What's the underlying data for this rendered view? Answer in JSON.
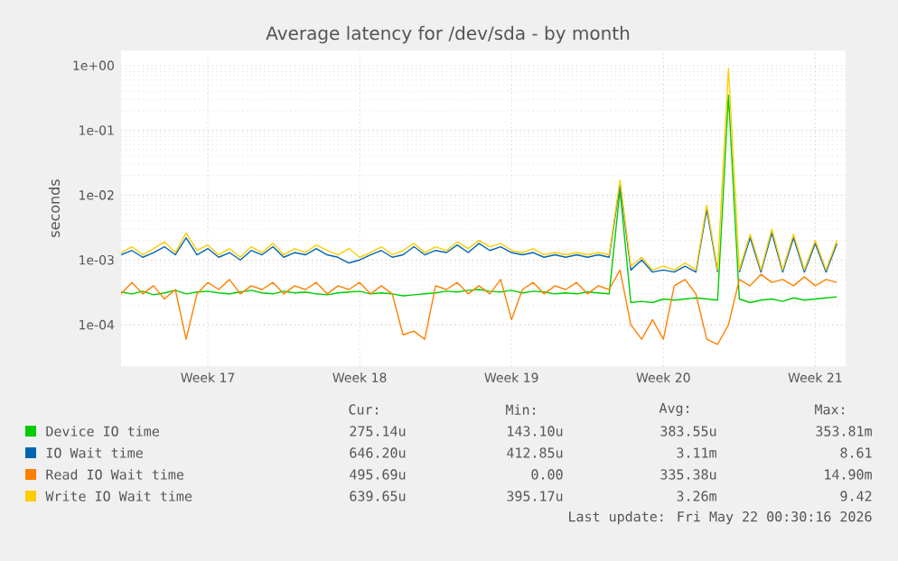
{
  "chart_data": {
    "type": "line",
    "title": "Average latency for /dev/sda - by month",
    "ylabel": "seconds",
    "log": true,
    "grid": true,
    "legend": "bottom",
    "categories": [
      null,
      null,
      null,
      null,
      null,
      null,
      null,
      null,
      "Week 17",
      null,
      null,
      null,
      null,
      null,
      null,
      null,
      null,
      null,
      null,
      null,
      null,
      null,
      "Week 18",
      null,
      null,
      null,
      null,
      null,
      null,
      null,
      null,
      null,
      null,
      null,
      null,
      null,
      "Week 19",
      null,
      null,
      null,
      null,
      null,
      null,
      null,
      null,
      null,
      null,
      null,
      null,
      null,
      "Week 20",
      null,
      null,
      null,
      null,
      null,
      null,
      null,
      null,
      null,
      null,
      null,
      null,
      null,
      "Week 21",
      null,
      null
    ],
    "ylim": [
      2.3e-05,
      1.7
    ],
    "yticks": [
      {
        "value": 0.0001,
        "label": "1e-04"
      },
      {
        "value": 0.001,
        "label": "1e-03"
      },
      {
        "value": 0.01,
        "label": "1e-02"
      },
      {
        "value": 0.1,
        "label": "1e-01"
      },
      {
        "value": 1,
        "label": "1e+00"
      }
    ],
    "series": [
      {
        "name": "Device IO time",
        "color": "#00cc00",
        "values": [
          0.00032,
          0.0003,
          0.00033,
          0.00029,
          0.00031,
          0.00034,
          0.0003,
          0.00032,
          0.00033,
          0.00031,
          0.0003,
          0.00032,
          0.00034,
          0.00031,
          0.0003,
          0.00033,
          0.00031,
          0.00032,
          0.0003,
          0.00029,
          0.00031,
          0.00032,
          0.00033,
          0.0003,
          0.00031,
          0.0003,
          0.00028,
          0.00029,
          0.0003,
          0.00031,
          0.00033,
          0.00032,
          0.00034,
          0.00035,
          0.00033,
          0.00032,
          0.00034,
          0.00031,
          0.00033,
          0.00032,
          0.0003,
          0.00031,
          0.0003,
          0.00032,
          0.00031,
          0.0003,
          0.012,
          0.00022,
          0.00023,
          0.00022,
          0.00025,
          0.00024,
          0.00025,
          0.00026,
          0.00025,
          0.00024,
          0.35,
          0.00025,
          0.00022,
          0.00024,
          0.00025,
          0.00023,
          0.00026,
          0.00024,
          0.00025,
          0.00026,
          0.00027
        ]
      },
      {
        "name": "IO Wait time",
        "color": "#0066b3",
        "values": [
          0.0012,
          0.0014,
          0.0011,
          0.0013,
          0.0016,
          0.0012,
          0.0022,
          0.0012,
          0.0015,
          0.0011,
          0.0013,
          0.001,
          0.0014,
          0.0012,
          0.0016,
          0.0011,
          0.0013,
          0.0012,
          0.0015,
          0.0012,
          0.0011,
          0.0009,
          0.001,
          0.0012,
          0.0014,
          0.0011,
          0.0012,
          0.0016,
          0.0012,
          0.0014,
          0.0013,
          0.0017,
          0.0013,
          0.0018,
          0.0014,
          0.0016,
          0.0013,
          0.0012,
          0.0013,
          0.0011,
          0.0012,
          0.0011,
          0.0012,
          0.0011,
          0.0012,
          0.0011,
          0.015,
          0.0007,
          0.001,
          0.00065,
          0.0007,
          0.00065,
          0.0008,
          0.00065,
          0.006,
          0.00065,
          null,
          0.00065,
          0.0022,
          0.00065,
          0.0026,
          0.00065,
          0.0022,
          0.00065,
          0.0018,
          0.00065,
          0.0018
        ]
      },
      {
        "name": "Read IO Wait time",
        "color": "#ff8000",
        "values": [
          0.0003,
          0.00045,
          0.0003,
          0.0004,
          0.00025,
          0.00035,
          6e-05,
          0.0003,
          0.00045,
          0.00035,
          0.0005,
          0.0003,
          0.0004,
          0.00035,
          0.00045,
          0.0003,
          0.0004,
          0.00035,
          0.00045,
          0.0003,
          0.0004,
          0.00035,
          0.00045,
          0.0003,
          0.0004,
          0.0003,
          7e-05,
          8e-05,
          6e-05,
          0.0004,
          0.00035,
          0.00045,
          0.0003,
          0.0004,
          0.0003,
          0.0005,
          0.00012,
          0.00035,
          0.00045,
          0.0003,
          0.0004,
          0.00035,
          0.00045,
          0.0003,
          0.0004,
          0.00035,
          0.0007,
          0.0001,
          6e-05,
          0.00012,
          6e-05,
          0.0004,
          0.0005,
          0.0003,
          6e-05,
          5e-05,
          0.0001,
          0.0005,
          0.0004,
          0.0006,
          0.00045,
          0.0005,
          0.0004,
          0.00055,
          0.0004,
          0.0005,
          0.00045
        ]
      },
      {
        "name": "Write IO Wait time",
        "color": "#ffcc00",
        "values": [
          0.0013,
          0.0016,
          0.0012,
          0.0015,
          0.0019,
          0.0013,
          0.0026,
          0.0014,
          0.0017,
          0.0012,
          0.0015,
          0.0011,
          0.0016,
          0.0013,
          0.0018,
          0.0012,
          0.0015,
          0.0013,
          0.0017,
          0.0014,
          0.0012,
          0.0015,
          0.0011,
          0.0013,
          0.0016,
          0.0012,
          0.0014,
          0.0018,
          0.0013,
          0.0016,
          0.0014,
          0.0019,
          0.0015,
          0.002,
          0.0016,
          0.0018,
          0.0014,
          0.0013,
          0.0015,
          0.0012,
          0.0013,
          0.0012,
          0.0013,
          0.0012,
          0.0013,
          0.0012,
          0.017,
          0.0008,
          0.0011,
          0.0007,
          0.0008,
          0.0007,
          0.0009,
          0.0007,
          0.007,
          0.0007,
          0.9,
          0.0007,
          0.0025,
          0.0007,
          0.003,
          0.0007,
          0.0025,
          0.0007,
          0.002,
          0.0007,
          0.002
        ]
      }
    ],
    "annotations": [
      "Cur:",
      "Min:",
      "Avg:",
      "Max:",
      "275.14u",
      "143.10u",
      "383.55u",
      "353.81m",
      "646.20u",
      "412.85u",
      "3.11m",
      "8.61",
      "495.69u",
      "0.00",
      "335.38u",
      "14.90m",
      "639.65u",
      "395.17u",
      "3.26m",
      "9.42",
      "Last update: Fri May 22 00:30:16 2026"
    ]
  }
}
